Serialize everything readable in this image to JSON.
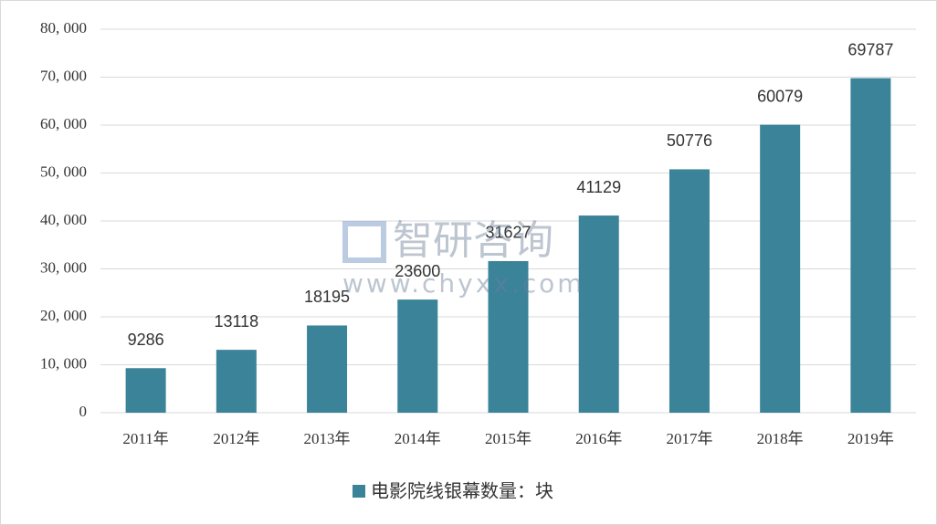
{
  "chart_data": {
    "type": "bar",
    "categories": [
      "2011年",
      "2012年",
      "2013年",
      "2014年",
      "2015年",
      "2016年",
      "2017年",
      "2018年",
      "2019年"
    ],
    "series": [
      {
        "name": "电影院线银幕数量：块",
        "color": "#3a8399",
        "values": [
          9286,
          13118,
          18195,
          23600,
          31627,
          41129,
          50776,
          60079,
          69787
        ]
      }
    ],
    "ylim": [
      0,
      80000
    ],
    "yticks": [
      0,
      {
        "value": 10000,
        "label": "10, 000"
      },
      {
        "value": 20000,
        "label": "20, 000"
      },
      {
        "value": 30000,
        "label": "30, 000"
      },
      {
        "value": 40000,
        "label": "40, 000"
      },
      {
        "value": 50000,
        "label": "50, 000"
      },
      {
        "value": 60000,
        "label": "60, 000"
      },
      {
        "value": 70000,
        "label": "70, 000"
      },
      {
        "value": 80000,
        "label": "80, 000"
      }
    ],
    "grid": true,
    "legend": "bottom",
    "watermark": {
      "brand": "智研咨询",
      "url": "www.chyxx.com"
    }
  }
}
